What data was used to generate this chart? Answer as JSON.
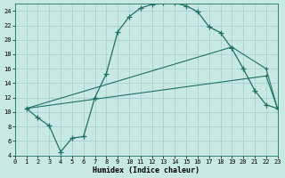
{
  "xlabel": "Humidex (Indice chaleur)",
  "bg_color": "#c8e8e4",
  "grid_color": "#9ecece",
  "line_color": "#1e7068",
  "xlim": [
    0,
    23
  ],
  "ylim": [
    4,
    25
  ],
  "xticks": [
    0,
    1,
    2,
    3,
    4,
    5,
    6,
    7,
    8,
    9,
    10,
    11,
    12,
    13,
    14,
    15,
    16,
    17,
    18,
    19,
    20,
    21,
    22,
    23
  ],
  "yticks": [
    4,
    6,
    8,
    10,
    12,
    14,
    16,
    18,
    20,
    22,
    24
  ],
  "curve_x": [
    1,
    2,
    3,
    4,
    5,
    6,
    7,
    8,
    9,
    10,
    11,
    12,
    13,
    14,
    15,
    16,
    17,
    18,
    19,
    20,
    21,
    22,
    23
  ],
  "curve_y": [
    10.5,
    9.2,
    8.1,
    4.5,
    6.4,
    6.6,
    12.0,
    15.3,
    21.1,
    23.2,
    24.4,
    24.9,
    25.1,
    25.1,
    24.7,
    23.9,
    21.8,
    21.0,
    18.8,
    16.0,
    13.0,
    11.0,
    10.5
  ],
  "line2_x": [
    1,
    19,
    22,
    23
  ],
  "line2_y": [
    10.5,
    19.0,
    16.0,
    10.5
  ],
  "line3_x": [
    1,
    22,
    23
  ],
  "line3_y": [
    10.5,
    15.0,
    10.5
  ]
}
